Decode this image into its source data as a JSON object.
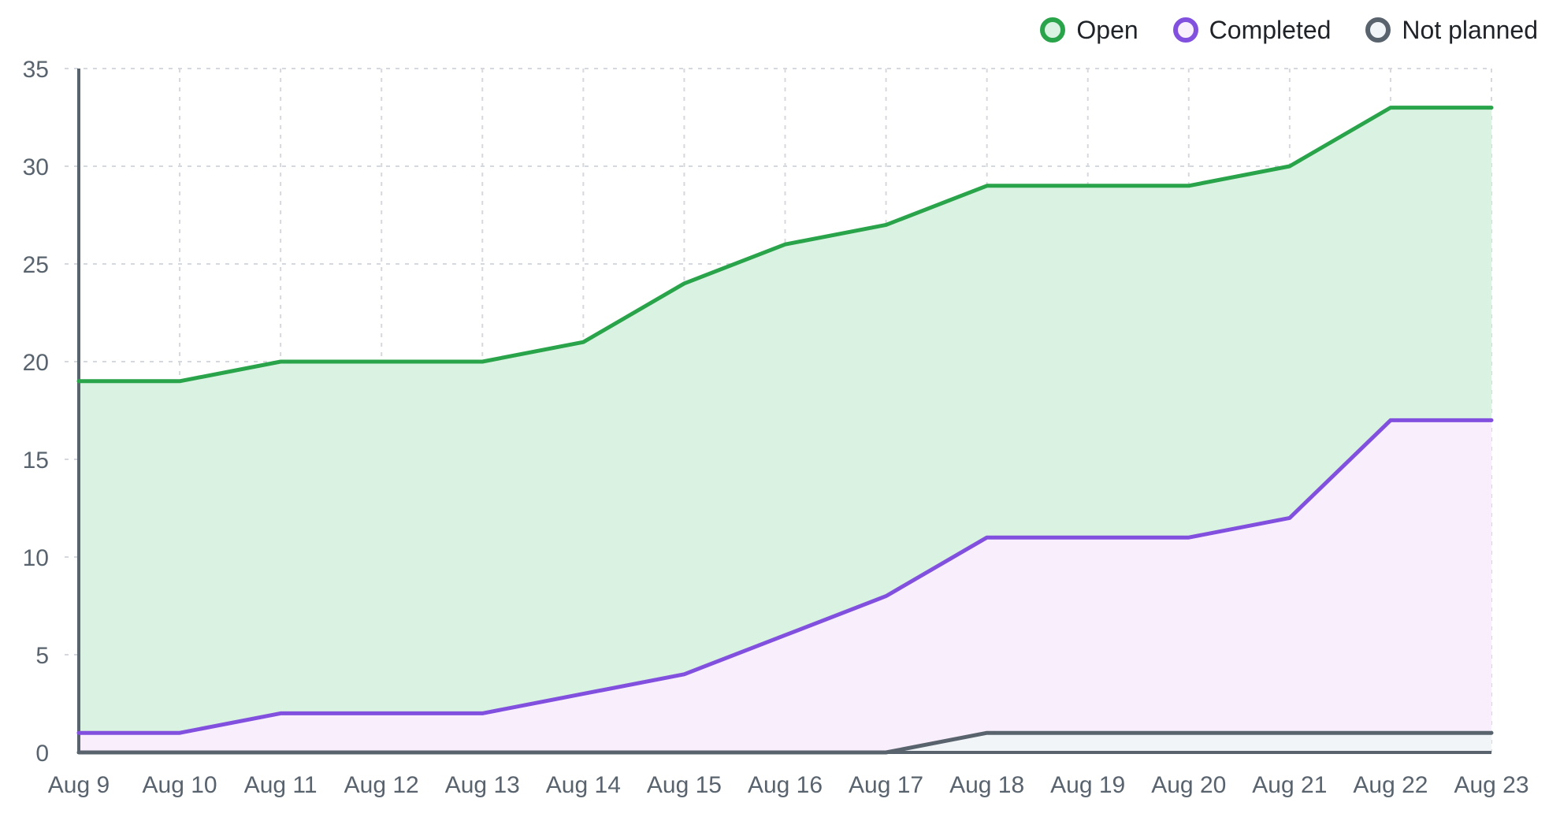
{
  "page": {
    "background": "#ffffff"
  },
  "legend": {
    "position": "top-right"
  },
  "chart_data": {
    "type": "area",
    "title": "",
    "xlabel": "",
    "ylabel": "",
    "categories": [
      "Aug 9",
      "Aug 10",
      "Aug 11",
      "Aug 12",
      "Aug 13",
      "Aug 14",
      "Aug 15",
      "Aug 16",
      "Aug 17",
      "Aug 18",
      "Aug 19",
      "Aug 20",
      "Aug 21",
      "Aug 22",
      "Aug 23"
    ],
    "series": [
      {
        "name": "Open",
        "line_color": "#2aa44a",
        "fill_color": "#d9f2e1",
        "values": [
          19,
          19,
          20,
          20,
          20,
          21,
          24,
          26,
          27,
          29,
          29,
          29,
          30,
          33,
          33
        ]
      },
      {
        "name": "Completed",
        "line_color": "#8250df",
        "fill_color": "#f9eefb",
        "values": [
          1,
          1,
          2,
          2,
          2,
          3,
          4,
          6,
          8,
          11,
          11,
          11,
          12,
          17,
          17
        ]
      },
      {
        "name": "Not planned",
        "line_color": "#59636e",
        "fill_color": "#f2f5f7",
        "values": [
          0,
          0,
          0,
          0,
          0,
          0,
          0,
          0,
          0,
          1,
          1,
          1,
          1,
          1,
          1
        ]
      }
    ],
    "ylim": [
      0,
      35
    ],
    "yticks": [
      0,
      5,
      10,
      15,
      20,
      25,
      30,
      35
    ],
    "grid": true,
    "grid_style": "dashed",
    "grid_color": "#d5d8dc",
    "axis_color": "#59636e",
    "tick_label_color": "#59636e",
    "legend_text_color": "#1f2328",
    "legend_position": "top-right"
  }
}
